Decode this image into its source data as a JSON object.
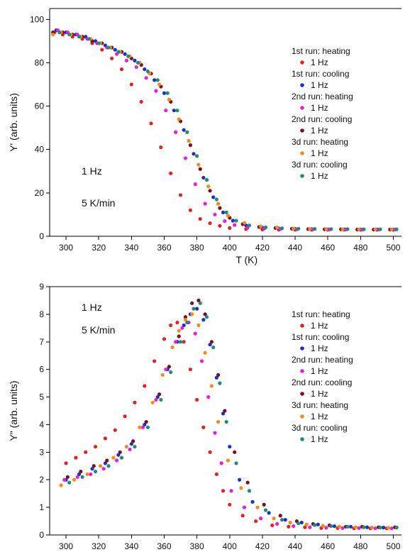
{
  "figure": {
    "background": "#ffffff"
  },
  "chart_data": [
    {
      "type": "scatter",
      "title": "",
      "xlabel": "T (K)",
      "ylabel": "Y' (arb. units)",
      "xlim": [
        290,
        505
      ],
      "ylim": [
        0,
        105
      ],
      "xticks": [
        300,
        320,
        340,
        360,
        380,
        400,
        420,
        440,
        460,
        480,
        500
      ],
      "yticks": [
        0,
        20,
        40,
        60,
        80,
        100
      ],
      "grid": false,
      "legend_position": "right",
      "annotations": [
        "1 Hz",
        "5 K/min"
      ],
      "series": [
        {
          "name": "1st run: heating",
          "frequency": "1 Hz",
          "color": "#e32222",
          "x": [
            293,
            298,
            304,
            310,
            316,
            322,
            328,
            334,
            340,
            346,
            352,
            358,
            364,
            370,
            376,
            382,
            388,
            394,
            400,
            410,
            420,
            430,
            440,
            450,
            460,
            470,
            480,
            490,
            500
          ],
          "y": [
            94,
            93,
            92,
            91,
            89,
            86,
            82,
            77,
            70,
            62,
            52,
            41,
            29,
            19,
            12,
            8,
            6,
            4.8,
            3.8,
            3.3,
            3.1,
            3.0,
            3.0,
            3.0,
            3.0,
            3.0,
            3.0,
            3.0,
            3.0
          ]
        },
        {
          "name": "1st run: cooling",
          "frequency": "1 Hz",
          "color": "#1f2fbf",
          "x": [
            294,
            300,
            306,
            312,
            318,
            324,
            330,
            336,
            342,
            348,
            354,
            360,
            366,
            372,
            378,
            384,
            390,
            396,
            402,
            410,
            420,
            430,
            440,
            450,
            460,
            470,
            480,
            490,
            500
          ],
          "y": [
            95,
            94,
            93,
            92,
            90,
            88,
            86,
            84,
            81,
            77,
            72,
            66,
            58,
            49,
            38,
            27,
            18,
            11,
            7.2,
            5.0,
            4.0,
            3.6,
            3.4,
            3.3,
            3.2,
            3.2,
            3.1,
            3.1,
            3.1
          ]
        },
        {
          "name": "2nd run: heating",
          "frequency": "1 Hz",
          "color": "#e61ee0",
          "x": [
            295,
            301,
            307,
            313,
            319,
            325,
            331,
            337,
            343,
            349,
            355,
            361,
            367,
            373,
            379,
            385,
            391,
            397,
            403,
            411,
            421,
            431,
            441,
            451,
            461,
            471,
            481,
            491,
            501
          ],
          "y": [
            95,
            94,
            93,
            91,
            89,
            87,
            84,
            81,
            78,
            73,
            67,
            58,
            48,
            36,
            24,
            15,
            10,
            7,
            5.2,
            4.0,
            3.5,
            3.3,
            3.2,
            3.2,
            3.1,
            3.1,
            3.1,
            3.1,
            3.1
          ]
        },
        {
          "name": "2nd run: cooling",
          "frequency": "1 Hz",
          "color": "#7a0f1d",
          "x": [
            292,
            298,
            304,
            310,
            316,
            322,
            328,
            334,
            340,
            346,
            352,
            358,
            364,
            370,
            376,
            382,
            388,
            394,
            400,
            408,
            418,
            428,
            438,
            448,
            458,
            468,
            478,
            488,
            498
          ],
          "y": [
            94,
            94,
            93,
            92,
            90,
            89,
            87,
            85,
            82,
            79,
            75,
            69,
            62,
            53,
            42,
            31,
            21,
            13,
            8.5,
            5.6,
            4.3,
            3.8,
            3.5,
            3.3,
            3.2,
            3.2,
            3.1,
            3.1,
            3.1
          ]
        },
        {
          "name": "3d run: heating",
          "frequency": "1 Hz",
          "color": "#f08c1e",
          "x": [
            292,
            297,
            303,
            309,
            315,
            321,
            327,
            333,
            339,
            345,
            351,
            357,
            363,
            369,
            375,
            381,
            387,
            393,
            399,
            409,
            419,
            429,
            439,
            449,
            459,
            469,
            479,
            489,
            499
          ],
          "y": [
            93,
            94,
            93,
            92,
            91,
            89,
            87,
            85,
            83,
            80,
            75,
            70,
            63,
            54,
            44,
            33,
            23,
            15,
            9.5,
            6.2,
            4.6,
            4.0,
            3.6,
            3.4,
            3.3,
            3.2,
            3.2,
            3.2,
            3.2
          ]
        },
        {
          "name": "3d run: cooling",
          "frequency": "1 Hz",
          "color": "#1d8c7a",
          "x": [
            296,
            302,
            308,
            314,
            320,
            326,
            332,
            338,
            344,
            350,
            356,
            362,
            368,
            374,
            380,
            386,
            392,
            398,
            404,
            412,
            422,
            432,
            442,
            452,
            462,
            472,
            482,
            492,
            502
          ],
          "y": [
            94,
            93,
            92,
            91,
            89,
            87,
            85,
            83,
            80,
            76,
            72,
            66,
            58,
            48,
            37,
            26,
            17,
            11,
            7.2,
            5.0,
            4.1,
            3.7,
            3.5,
            3.4,
            3.3,
            3.3,
            3.2,
            3.2,
            3.2
          ]
        }
      ]
    },
    {
      "type": "scatter",
      "title": "",
      "xlabel": "T (K)",
      "ylabel": "Y\" (arb. units)",
      "xlim": [
        290,
        505
      ],
      "ylim": [
        0,
        9
      ],
      "xticks": [
        300,
        320,
        340,
        360,
        380,
        400,
        420,
        440,
        460,
        480,
        500
      ],
      "yticks": [
        0,
        1,
        2,
        3,
        4,
        5,
        6,
        7,
        8,
        9
      ],
      "grid": false,
      "legend_position": "right",
      "annotations": [
        "1 Hz",
        "5 K/min"
      ],
      "series": [
        {
          "name": "1st run: heating",
          "frequency": "1 Hz",
          "color": "#e32222",
          "x": [
            300,
            306,
            312,
            318,
            324,
            330,
            336,
            342,
            348,
            354,
            360,
            364,
            368,
            372,
            376,
            380,
            384,
            388,
            392,
            396,
            400,
            408,
            416,
            426,
            436,
            446,
            456,
            466,
            476,
            486,
            496
          ],
          "y": [
            2.6,
            2.8,
            3.0,
            3.2,
            3.5,
            3.8,
            4.3,
            4.8,
            5.4,
            6.3,
            7.1,
            7.6,
            7.7,
            7.0,
            6.0,
            4.9,
            3.9,
            3.0,
            2.2,
            1.6,
            1.1,
            0.7,
            0.5,
            0.35,
            0.3,
            0.28,
            0.25,
            0.25,
            0.24,
            0.24,
            0.24
          ]
        },
        {
          "name": "1st run: cooling",
          "frequency": "1 Hz",
          "color": "#1f2fbf",
          "x": [
            300,
            308,
            316,
            324,
            332,
            340,
            348,
            356,
            362,
            368,
            372,
            376,
            380,
            384,
            388,
            392,
            396,
            400,
            406,
            414,
            424,
            434,
            444,
            454,
            464,
            474,
            484,
            494,
            502
          ],
          "y": [
            2.0,
            2.2,
            2.4,
            2.6,
            2.9,
            3.3,
            4.0,
            5.0,
            6.0,
            7.0,
            7.6,
            8.0,
            8.2,
            7.8,
            6.9,
            5.7,
            4.4,
            3.2,
            2.0,
            1.2,
            0.8,
            0.55,
            0.45,
            0.38,
            0.32,
            0.3,
            0.28,
            0.27,
            0.27
          ]
        },
        {
          "name": "2nd run: heating",
          "frequency": "1 Hz",
          "color": "#e61ee0",
          "x": [
            299,
            307,
            315,
            323,
            331,
            339,
            347,
            355,
            361,
            367,
            371,
            375,
            379,
            383,
            387,
            391,
            395,
            401,
            409,
            419,
            429,
            439,
            449,
            459,
            469,
            479,
            489,
            499
          ],
          "y": [
            2.0,
            2.1,
            2.2,
            2.4,
            2.7,
            3.1,
            3.9,
            4.9,
            6.0,
            7.0,
            7.5,
            7.7,
            7.3,
            6.3,
            5.0,
            3.7,
            2.6,
            1.6,
            1.0,
            0.6,
            0.4,
            0.32,
            0.28,
            0.26,
            0.25,
            0.25,
            0.24,
            0.24
          ]
        },
        {
          "name": "2nd run: cooling",
          "frequency": "1 Hz",
          "color": "#7a0f1d",
          "x": [
            301,
            309,
            317,
            325,
            333,
            341,
            349,
            357,
            363,
            369,
            373,
            377,
            381,
            385,
            389,
            393,
            397,
            403,
            411,
            421,
            431,
            441,
            451,
            461,
            471,
            481,
            491,
            501
          ],
          "y": [
            2.1,
            2.3,
            2.5,
            2.7,
            3.0,
            3.4,
            4.1,
            5.1,
            6.1,
            7.2,
            7.9,
            8.4,
            8.5,
            8.0,
            7.0,
            5.8,
            4.5,
            3.0,
            1.9,
            1.1,
            0.7,
            0.5,
            0.4,
            0.35,
            0.3,
            0.3,
            0.28,
            0.28
          ]
        },
        {
          "name": "3d run: heating",
          "frequency": "1 Hz",
          "color": "#f08c1e",
          "x": [
            297,
            305,
            313,
            321,
            329,
            337,
            345,
            353,
            359,
            365,
            369,
            373,
            377,
            381,
            385,
            389,
            393,
            399,
            407,
            417,
            427,
            437,
            447,
            457,
            467,
            477,
            487,
            497
          ],
          "y": [
            1.8,
            2.0,
            2.2,
            2.5,
            2.8,
            3.2,
            3.9,
            4.8,
            5.8,
            6.8,
            7.4,
            7.8,
            8.0,
            7.6,
            6.6,
            5.4,
            4.1,
            2.7,
            1.7,
            1.0,
            0.6,
            0.45,
            0.38,
            0.33,
            0.3,
            0.28,
            0.27,
            0.26
          ]
        },
        {
          "name": "3d run: cooling",
          "frequency": "1 Hz",
          "color": "#1d8c7a",
          "x": [
            302,
            310,
            318,
            326,
            334,
            342,
            350,
            358,
            364,
            370,
            374,
            378,
            382,
            386,
            390,
            394,
            398,
            404,
            412,
            422,
            432,
            442,
            452,
            462,
            472,
            482,
            492,
            502
          ],
          "y": [
            1.9,
            2.1,
            2.3,
            2.5,
            2.8,
            3.2,
            3.9,
            4.9,
            5.9,
            7.0,
            7.7,
            8.2,
            8.4,
            7.9,
            6.8,
            5.5,
            4.1,
            2.6,
            1.6,
            0.9,
            0.55,
            0.42,
            0.36,
            0.32,
            0.3,
            0.28,
            0.27,
            0.27
          ]
        }
      ]
    }
  ]
}
